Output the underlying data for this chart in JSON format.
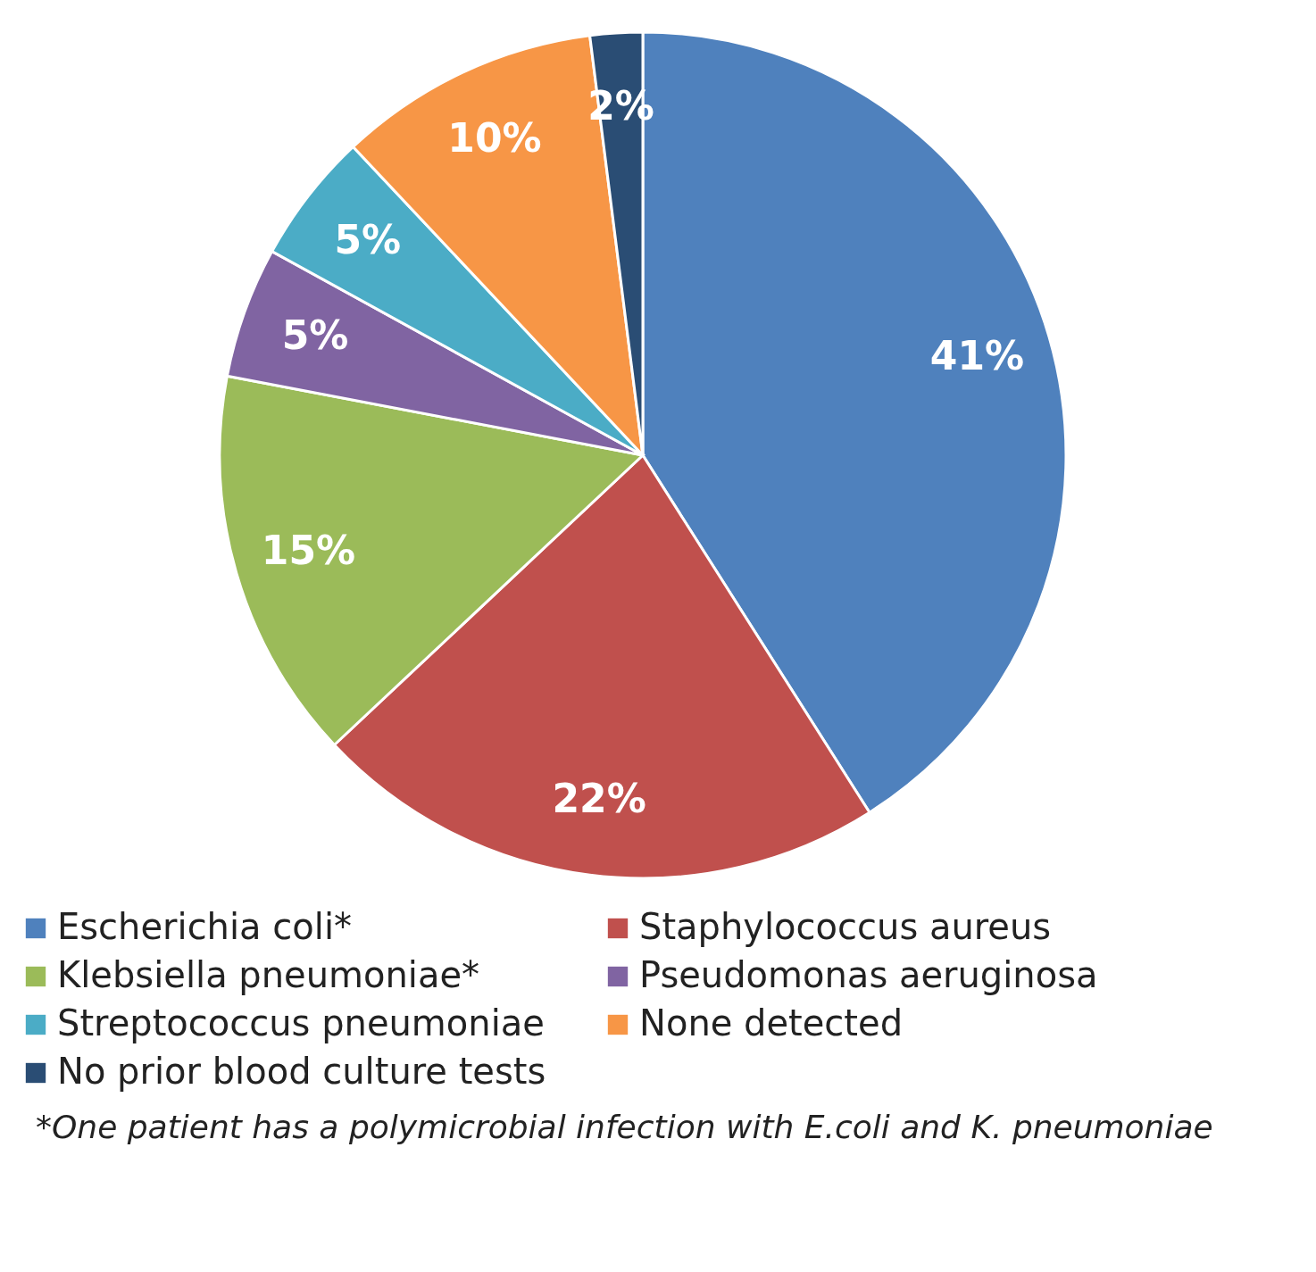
{
  "chart_data": {
    "type": "pie",
    "categories": [
      "Escherichia coli*",
      "Staphylococcus aureus",
      "Klebsiella pneumoniae*",
      "Pseudomonas aeruginosa",
      "Streptococcus pneumoniae",
      "None detected",
      "No prior blood culture tests"
    ],
    "values": [
      41,
      22,
      15,
      5,
      5,
      10,
      2
    ],
    "colors": [
      "#4f81bd",
      "#c0504d",
      "#9bbb59",
      "#8064a2",
      "#4bacc6",
      "#f79646",
      "#2a4d74"
    ],
    "value_labels": [
      "41%",
      "22%",
      "15%",
      "5%",
      "5%",
      "10%",
      "2%"
    ],
    "legend": "bottom",
    "annotations": [
      "*One patient has a polymicrobial infection with E.coli and K. pneumoniae"
    ]
  }
}
